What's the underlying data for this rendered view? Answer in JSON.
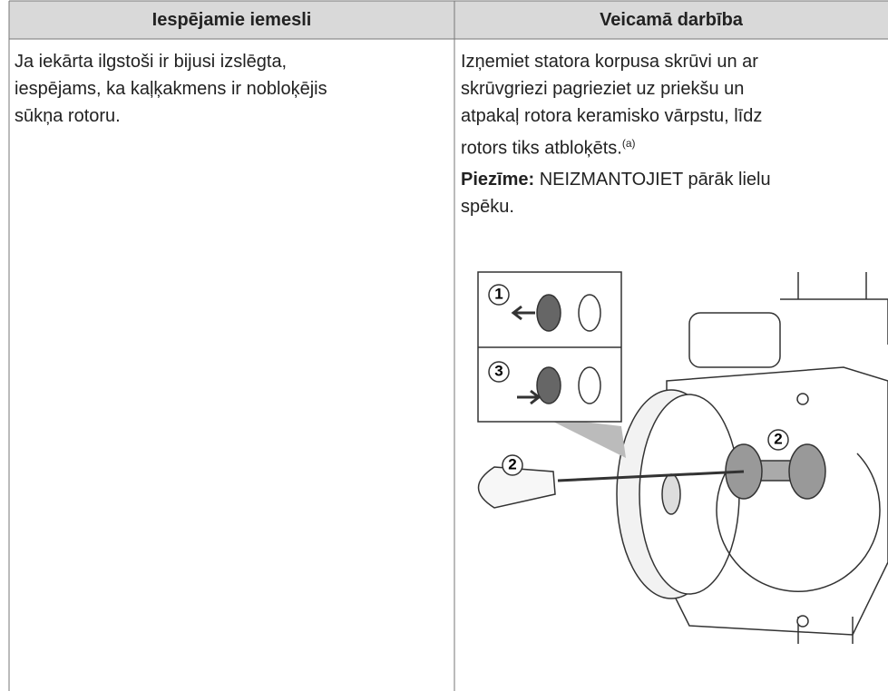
{
  "table": {
    "headers": [
      "Iespējamie iemesli",
      "Veicamā darbība"
    ],
    "cause_lines": [
      "Ja iekārta ilgstoši ir bijusi izslēgta,",
      "iespējams, ka kaļķakmens ir nobloķējis",
      "sūkņa rotoru."
    ],
    "action_lines": [
      "Izņemiet statora korpusa skrūvi un ar",
      "skrūvgriezi pagrieziet uz priekšu un",
      "atpakaļ rotora keramisko vārpstu, līdz",
      "rotors tiks atbloķēts."
    ],
    "footnote_ref": "(a)",
    "note_label": "Piezīme:",
    "note_lines": [
      "NEIZMANTOJIET pārāk lielu",
      "spēku."
    ],
    "figure": {
      "callouts": [
        "1",
        "3",
        "2",
        "2"
      ]
    }
  }
}
